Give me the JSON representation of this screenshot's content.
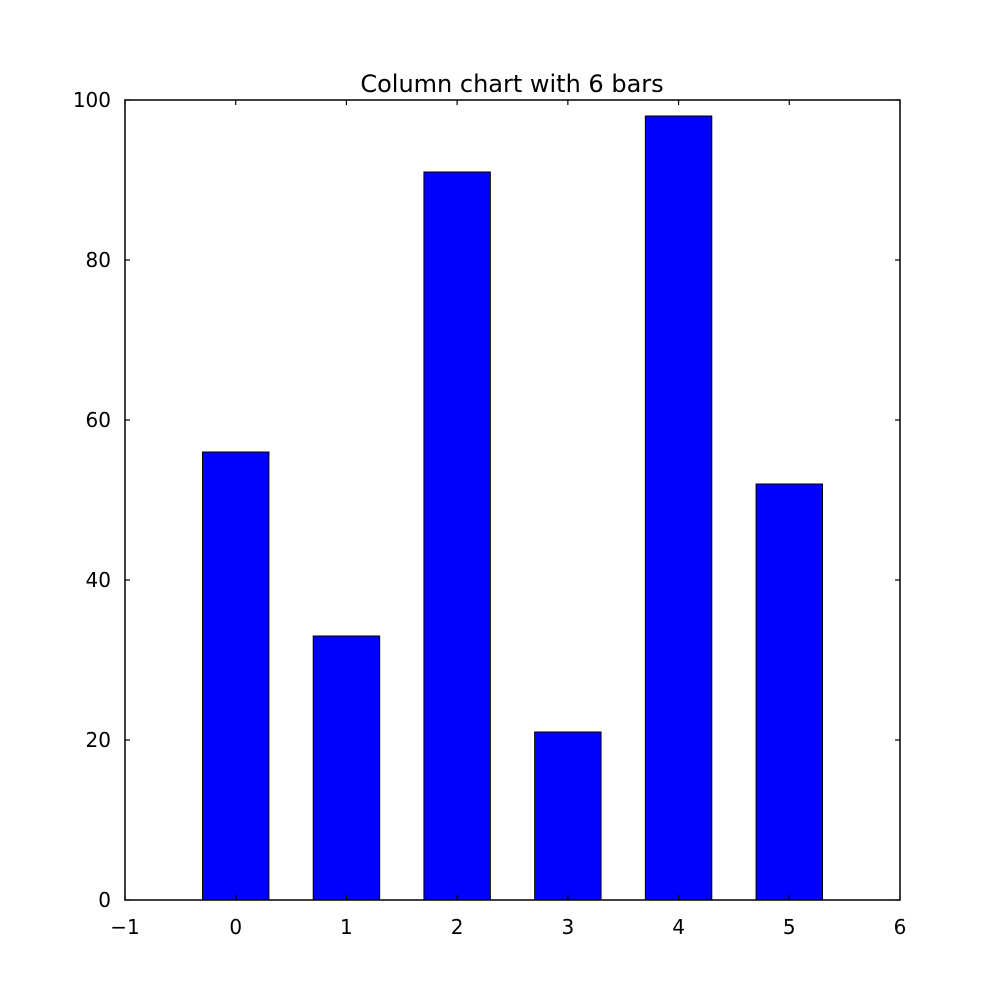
{
  "chart_data": {
    "type": "bar",
    "title": "Column chart with 6 bars",
    "xlabel": "",
    "ylabel": "",
    "x": [
      0,
      1,
      2,
      3,
      4,
      5
    ],
    "values": [
      56,
      33,
      91,
      21,
      98,
      52
    ],
    "bar_width": 0.6,
    "xlim": [
      -1,
      6
    ],
    "ylim": [
      0,
      100
    ],
    "xticks": [
      -1,
      0,
      1,
      2,
      3,
      4,
      5,
      6
    ],
    "xtick_labels": [
      "−1",
      "0",
      "1",
      "2",
      "3",
      "4",
      "5",
      "6"
    ],
    "yticks": [
      0,
      20,
      40,
      60,
      80,
      100
    ],
    "ytick_labels": [
      "0",
      "20",
      "40",
      "60",
      "80",
      "100"
    ],
    "grid": false,
    "legend": "none",
    "colors": {
      "bar_fill": "#0000ff",
      "bar_edge": "#000000",
      "axes": "#000000",
      "background": "#ffffff"
    }
  }
}
